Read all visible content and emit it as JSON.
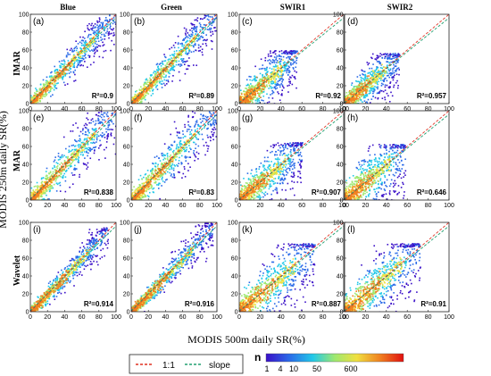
{
  "chart_data": {
    "type": "heatmap",
    "subtype": "density scatter grid",
    "ylabel": "MODIS 250m daily SR(%)",
    "xlabel": "MODIS 500m daily SR(%)",
    "columns": [
      "Blue",
      "Green",
      "SWIR1",
      "SWIR2"
    ],
    "rows": [
      "IMAR",
      "MAR",
      "Wavelet"
    ],
    "xlim": [
      0,
      100
    ],
    "ylim": [
      0,
      100
    ],
    "x_ticks": [
      "0",
      "20",
      "40",
      "60",
      "80",
      "100"
    ],
    "y_ticks": [
      "0",
      "20",
      "40",
      "60",
      "80",
      "100"
    ],
    "panels": [
      {
        "label": "(a)",
        "band": "Blue",
        "method": "IMAR",
        "r2_text": "R²=0.9",
        "r2": 0.9
      },
      {
        "label": "(b)",
        "band": "Green",
        "method": "IMAR",
        "r2_text": "R²=0.89",
        "r2": 0.89
      },
      {
        "label": "(c)",
        "band": "SWIR1",
        "method": "IMAR",
        "r2_text": "R²=0.92",
        "r2": 0.92
      },
      {
        "label": "(d)",
        "band": "SWIR2",
        "method": "IMAR",
        "r2_text": "R²=0.957",
        "r2": 0.957
      },
      {
        "label": "(e)",
        "band": "Blue",
        "method": "MAR",
        "r2_text": "R²=0.838",
        "r2": 0.838
      },
      {
        "label": "(f)",
        "band": "Green",
        "method": "MAR",
        "r2_text": "R²=0.83",
        "r2": 0.83
      },
      {
        "label": "(g)",
        "band": "SWIR1",
        "method": "MAR",
        "r2_text": "R²=0.907",
        "r2": 0.907
      },
      {
        "label": "(h)",
        "band": "SWIR2",
        "method": "MAR",
        "r2_text": "R²=0.646",
        "r2": 0.646
      },
      {
        "label": "(i)",
        "band": "Blue",
        "method": "Wavelet",
        "r2_text": "R²=0.914",
        "r2": 0.914
      },
      {
        "label": "(j)",
        "band": "Green",
        "method": "Wavelet",
        "r2_text": "R²=0.916",
        "r2": 0.916
      },
      {
        "label": "(k)",
        "band": "SWIR1",
        "method": "Wavelet",
        "r2_text": "R²=0.887",
        "r2": 0.887
      },
      {
        "label": "(l)",
        "band": "SWIR2",
        "method": "Wavelet",
        "r2_text": "R²=0.91",
        "r2": 0.91
      }
    ],
    "legend": {
      "entries": [
        {
          "name": "1:1",
          "color": "#e03020",
          "style": "dashed"
        },
        {
          "name": "slope",
          "color": "#20a070",
          "style": "dashed"
        }
      ]
    },
    "colorbar": {
      "title": "n",
      "tick_labels": [
        "1",
        "4",
        "10",
        "50",
        "600"
      ],
      "scale": "log",
      "colors": [
        "#3a10c8",
        "#2a6ae8",
        "#22c8e8",
        "#9ee870",
        "#f0e040",
        "#f08020",
        "#e01010"
      ]
    }
  }
}
